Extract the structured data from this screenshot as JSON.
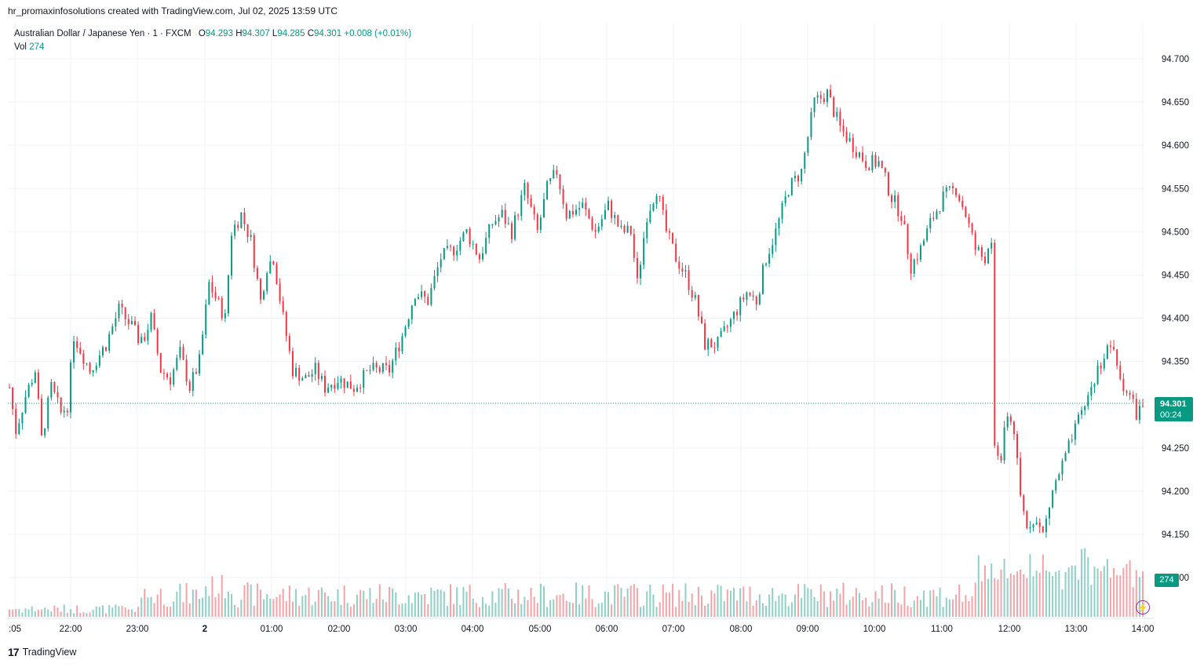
{
  "attribution": "hr_promaxinfosolutions created with TradingView.com, Jul 02, 2025 13:59 UTC",
  "legend": {
    "symbol": "Australian Dollar / Japanese Yen · 1 · FXCM",
    "open_label": "O",
    "open": "94.293",
    "high_label": "H",
    "high": "94.307",
    "low_label": "L",
    "low": "94.285",
    "close_label": "C",
    "close": "94.301",
    "change": "+0.008 (+0.01%)",
    "vol_label": "Vol",
    "vol": "274"
  },
  "last_price": {
    "value": "94.301",
    "countdown": "00:24"
  },
  "last_volume": "274",
  "footer": {
    "logo": "17",
    "brand": "TradingView"
  },
  "colors": {
    "up": "#089981",
    "down": "#f23645",
    "up_vol": "#8fd0c4",
    "down_vol": "#f5a3a8",
    "grid": "#f0f3fa",
    "accent": "#089981"
  },
  "chart_data": {
    "type": "candlestick",
    "title": "Australian Dollar / Japanese Yen · 1 · FXCM",
    "ylim": [
      94.1,
      94.72
    ],
    "y_ticks": [
      "94.700",
      "94.650",
      "94.600",
      "94.550",
      "94.500",
      "94.450",
      "94.400",
      "94.350",
      "94.250",
      "94.200",
      "94.150"
    ],
    "x_ticks": [
      ":05",
      "22:00",
      "23:00",
      "2",
      "01:00",
      "02:00",
      "03:00",
      "04:00",
      "05:00",
      "06:00",
      "07:00",
      "08:00",
      "09:00",
      "10:00",
      "11:00",
      "12:00",
      "13:00",
      "14:00"
    ],
    "grid": true,
    "close_path": [
      [
        0,
        94.32
      ],
      [
        2,
        94.27
      ],
      [
        5,
        94.31
      ],
      [
        8,
        94.34
      ],
      [
        10,
        94.26
      ],
      [
        13,
        94.32
      ],
      [
        16,
        94.29
      ],
      [
        18,
        94.3
      ],
      [
        20,
        94.38
      ],
      [
        25,
        94.34
      ],
      [
        30,
        94.37
      ],
      [
        34,
        94.41
      ],
      [
        38,
        94.39
      ],
      [
        41,
        94.37
      ],
      [
        44,
        94.4
      ],
      [
        47,
        94.34
      ],
      [
        50,
        94.33
      ],
      [
        53,
        94.36
      ],
      [
        56,
        94.32
      ],
      [
        59,
        94.35
      ],
      [
        62,
        94.44
      ],
      [
        67,
        94.4
      ],
      [
        69,
        94.5
      ],
      [
        72,
        94.52
      ],
      [
        75,
        94.49
      ],
      [
        78,
        94.42
      ],
      [
        80,
        94.46
      ],
      [
        82,
        94.47
      ],
      [
        85,
        94.4
      ],
      [
        88,
        94.34
      ],
      [
        92,
        94.33
      ],
      [
        95,
        94.34
      ],
      [
        98,
        94.32
      ],
      [
        102,
        94.33
      ],
      [
        107,
        94.32
      ],
      [
        112,
        94.34
      ],
      [
        118,
        94.34
      ],
      [
        122,
        94.38
      ],
      [
        126,
        94.43
      ],
      [
        130,
        94.42
      ],
      [
        134,
        94.47
      ],
      [
        138,
        94.48
      ],
      [
        142,
        94.5
      ],
      [
        146,
        94.47
      ],
      [
        150,
        94.51
      ],
      [
        153,
        94.52
      ],
      [
        156,
        94.5
      ],
      [
        160,
        94.55
      ],
      [
        164,
        94.5
      ],
      [
        167,
        94.55
      ],
      [
        170,
        94.57
      ],
      [
        173,
        94.52
      ],
      [
        178,
        94.53
      ],
      [
        182,
        94.5
      ],
      [
        186,
        94.53
      ],
      [
        190,
        94.5
      ],
      [
        193,
        94.5
      ],
      [
        195,
        94.44
      ],
      [
        198,
        94.52
      ],
      [
        201,
        94.55
      ],
      [
        204,
        94.5
      ],
      [
        207,
        94.47
      ],
      [
        210,
        94.45
      ],
      [
        213,
        94.42
      ],
      [
        216,
        94.37
      ],
      [
        220,
        94.37
      ],
      [
        223,
        94.39
      ],
      [
        226,
        94.41
      ],
      [
        229,
        94.43
      ],
      [
        232,
        94.42
      ],
      [
        235,
        94.47
      ],
      [
        238,
        94.5
      ],
      [
        242,
        94.55
      ],
      [
        246,
        94.57
      ],
      [
        250,
        94.65
      ],
      [
        254,
        94.66
      ],
      [
        258,
        94.62
      ],
      [
        262,
        94.6
      ],
      [
        266,
        94.58
      ],
      [
        270,
        94.58
      ],
      [
        274,
        94.54
      ],
      [
        277,
        94.52
      ],
      [
        280,
        94.46
      ],
      [
        283,
        94.48
      ],
      [
        286,
        94.51
      ],
      [
        290,
        94.54
      ],
      [
        294,
        94.55
      ],
      [
        297,
        94.52
      ],
      [
        300,
        94.48
      ],
      [
        303,
        94.47
      ],
      [
        305,
        94.48
      ],
      [
        306,
        94.25
      ],
      [
        308,
        94.24
      ],
      [
        310,
        94.29
      ],
      [
        312,
        94.27
      ],
      [
        314,
        94.19
      ],
      [
        316,
        94.16
      ],
      [
        318,
        94.17
      ],
      [
        321,
        94.15
      ],
      [
        324,
        94.2
      ],
      [
        327,
        94.23
      ],
      [
        330,
        94.26
      ],
      [
        333,
        94.29
      ],
      [
        336,
        94.32
      ],
      [
        339,
        94.35
      ],
      [
        342,
        94.37
      ],
      [
        345,
        94.33
      ],
      [
        348,
        94.31
      ],
      [
        350,
        94.29
      ],
      [
        352,
        94.3
      ]
    ]
  }
}
